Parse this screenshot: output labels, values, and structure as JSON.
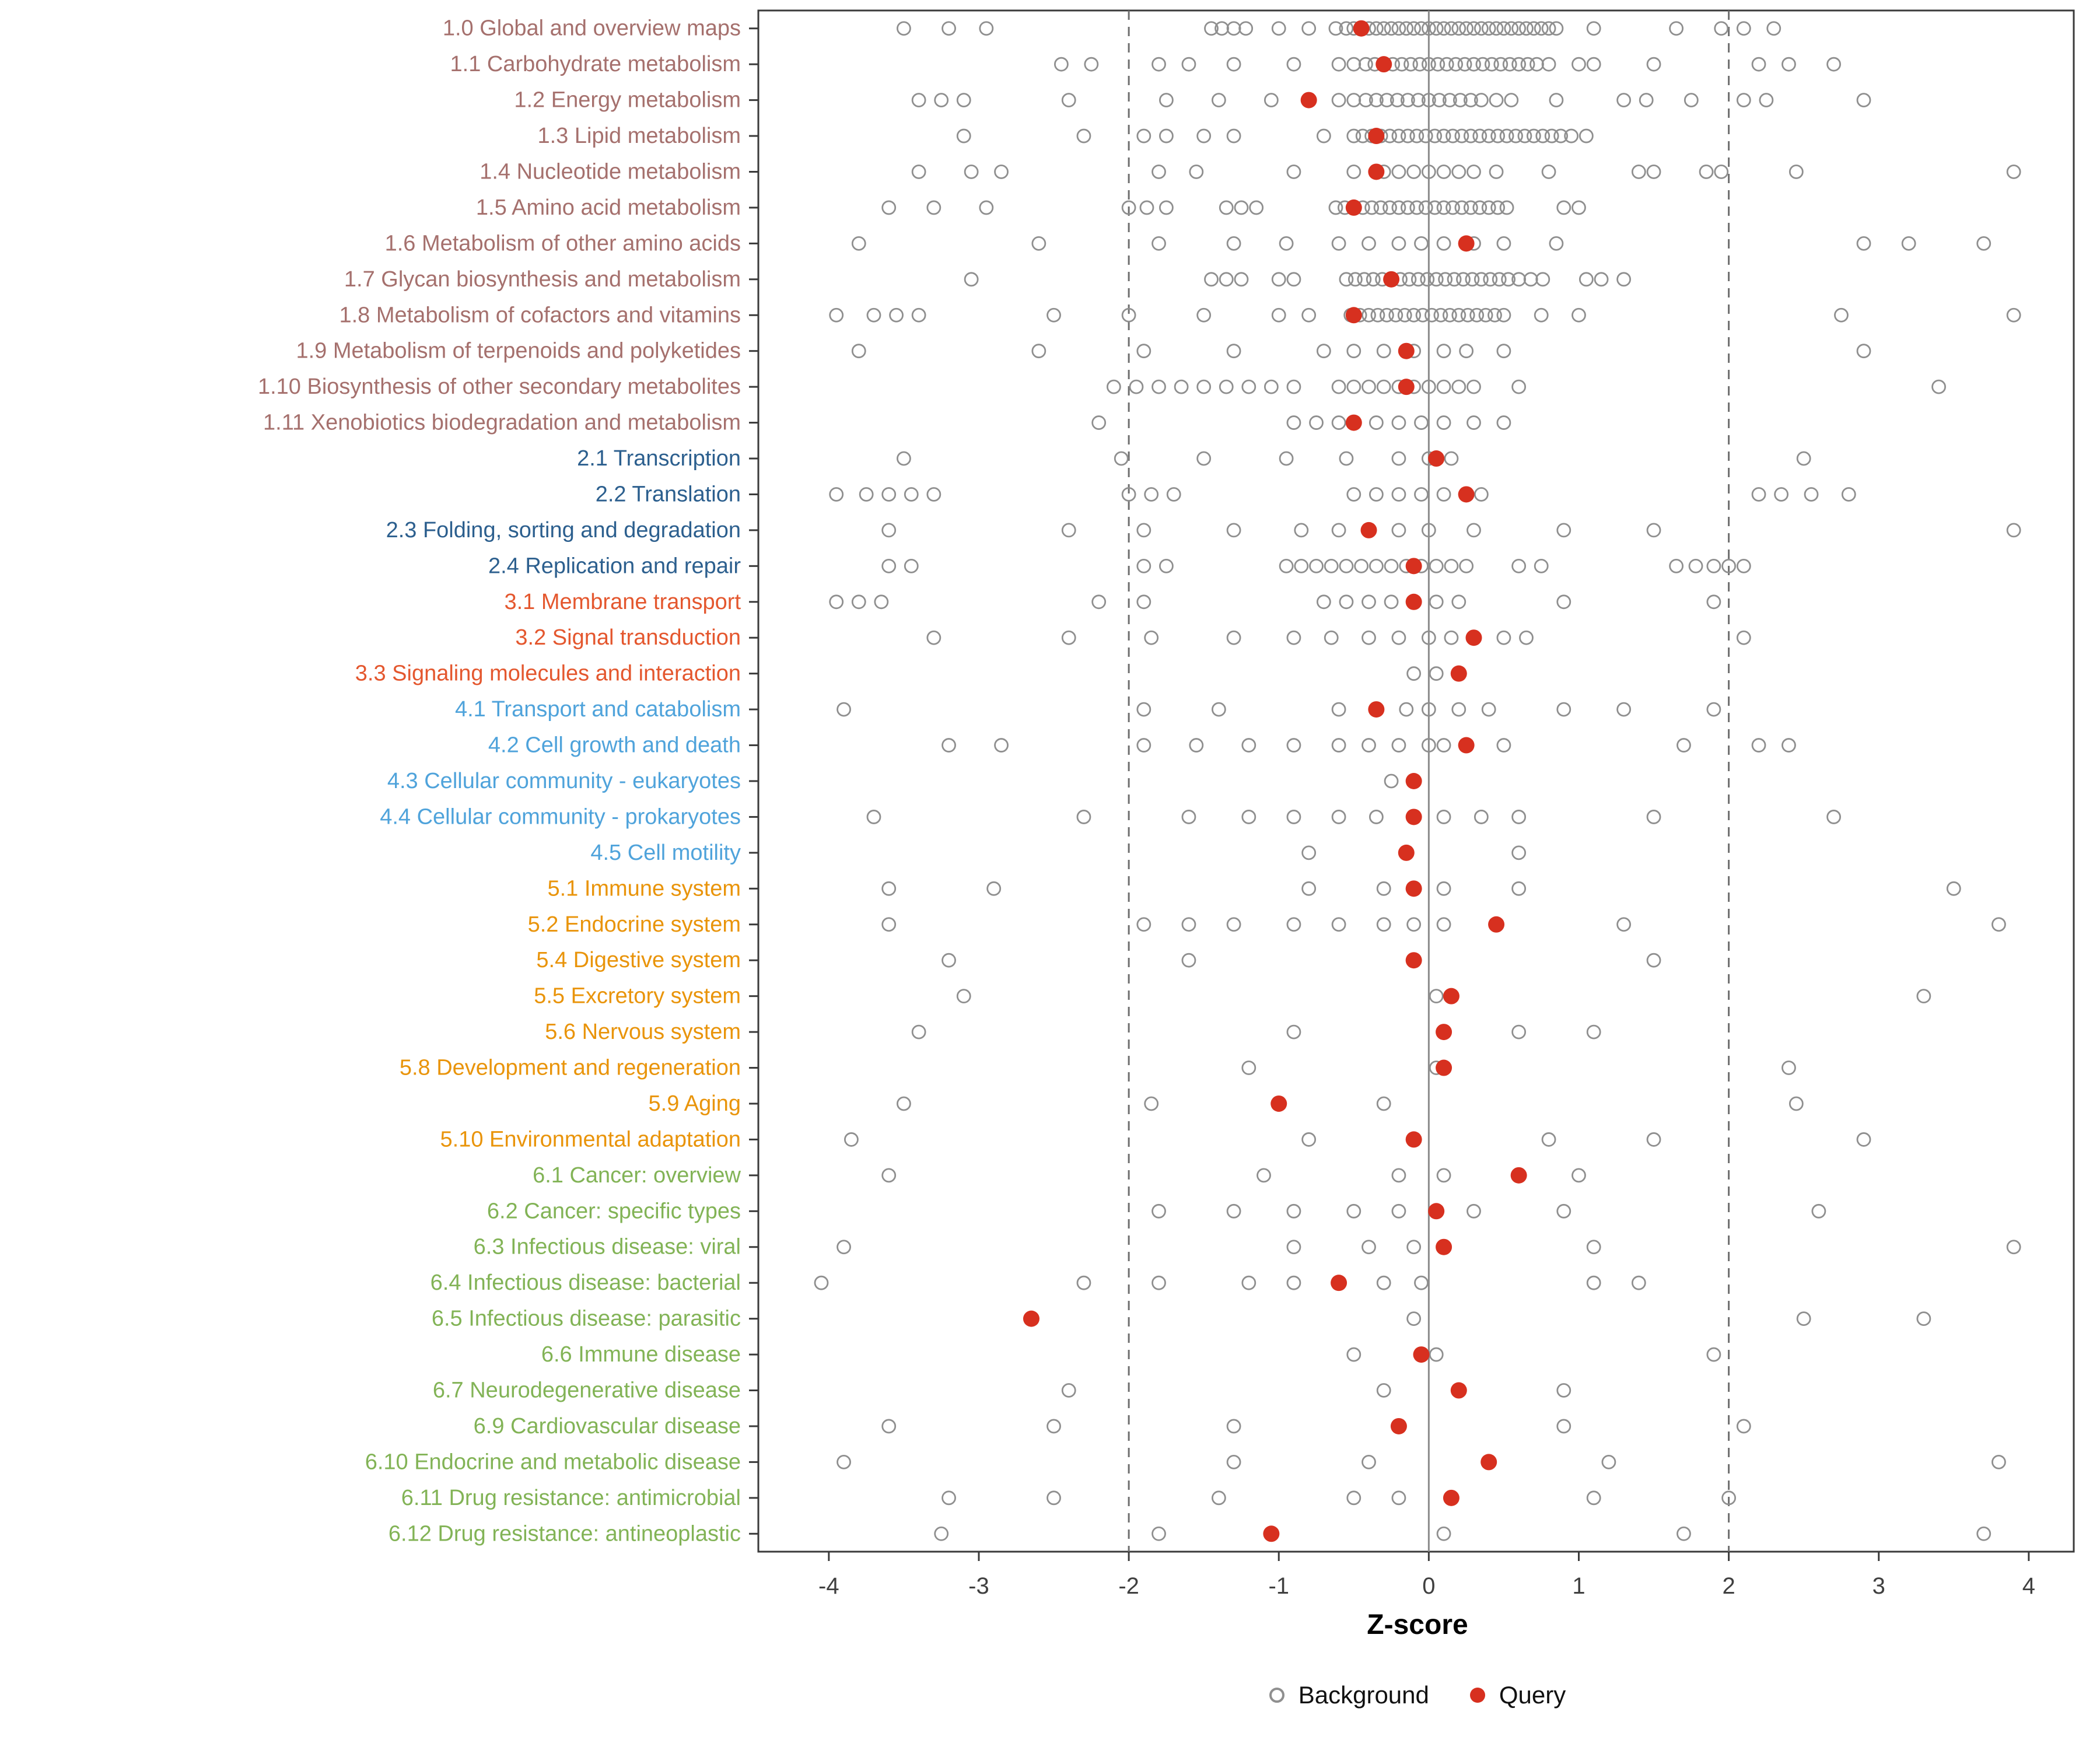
{
  "colors": {
    "query": "#D7301F",
    "background_stroke": "#8F8F8F",
    "dashed_line": "#6E6E6E",
    "zero_line": "#8A8A8A",
    "panel_border": "#3A3A3A",
    "tick_label": "#404040",
    "groups": {
      "metabolism": "#A5706D",
      "genetic": "#2C5F8E",
      "environmental": "#E4572E",
      "cellular": "#4FA3DB",
      "organismal": "#E9940A",
      "disease": "#82B356"
    }
  },
  "chart_data": {
    "type": "scatter",
    "title": "",
    "xlabel": "Z-score",
    "ylabel": "",
    "xlim": [
      -4.47,
      4.3
    ],
    "x_ticks": [
      -4,
      -3,
      -2,
      -1,
      0,
      1,
      2,
      3,
      4
    ],
    "reference_lines": {
      "dashed": [
        -2,
        2
      ],
      "solid": [
        0
      ]
    },
    "grid": "off",
    "legend": {
      "position": "bottom",
      "entries": [
        {
          "label": "Background",
          "type": "open-circle"
        },
        {
          "label": "Query",
          "type": "filled-circle"
        }
      ]
    },
    "rows": [
      {
        "label": "1.0 Global and overview maps",
        "group": "metabolism",
        "query": -0.45,
        "background": [
          -3.5,
          -3.2,
          -2.95,
          -1.45,
          -1.38,
          -1.3,
          -1.22,
          -1.0,
          -0.8,
          -0.62,
          -0.55,
          -0.5,
          -0.45,
          -0.4,
          -0.35,
          -0.3,
          -0.25,
          -0.2,
          -0.15,
          -0.1,
          -0.05,
          0,
          0.05,
          0.1,
          0.15,
          0.2,
          0.25,
          0.3,
          0.35,
          0.4,
          0.45,
          0.5,
          0.55,
          0.6,
          0.65,
          0.7,
          0.75,
          0.8,
          0.85,
          1.1,
          1.65,
          1.95,
          2.1,
          2.3
        ]
      },
      {
        "label": "1.1 Carbohydrate metabolism",
        "group": "metabolism",
        "query": -0.3,
        "background": [
          -2.45,
          -2.25,
          -1.8,
          -1.6,
          -1.3,
          -0.9,
          -0.6,
          -0.5,
          -0.42,
          -0.36,
          -0.3,
          -0.24,
          -0.18,
          -0.12,
          -0.06,
          0,
          0.06,
          0.12,
          0.18,
          0.24,
          0.3,
          0.36,
          0.42,
          0.48,
          0.54,
          0.6,
          0.66,
          0.72,
          0.8,
          1.0,
          1.1,
          1.5,
          2.2,
          2.4,
          2.7
        ]
      },
      {
        "label": "1.2 Energy metabolism",
        "group": "metabolism",
        "query": -0.8,
        "background": [
          -3.4,
          -3.25,
          -3.1,
          -2.4,
          -1.75,
          -1.4,
          -1.05,
          -0.6,
          -0.5,
          -0.42,
          -0.35,
          -0.28,
          -0.21,
          -0.14,
          -0.07,
          0,
          0.07,
          0.14,
          0.21,
          0.28,
          0.35,
          0.45,
          0.55,
          0.85,
          1.3,
          1.45,
          1.75,
          2.1,
          2.25,
          2.9
        ]
      },
      {
        "label": "1.3 Lipid metabolism",
        "group": "metabolism",
        "query": -0.35,
        "background": [
          -3.1,
          -2.3,
          -1.9,
          -1.75,
          -1.5,
          -1.3,
          -0.7,
          -0.5,
          -0.44,
          -0.38,
          -0.32,
          -0.26,
          -0.2,
          -0.14,
          -0.08,
          -0.02,
          0.04,
          0.1,
          0.16,
          0.22,
          0.28,
          0.34,
          0.4,
          0.46,
          0.52,
          0.58,
          0.64,
          0.7,
          0.76,
          0.82,
          0.88,
          0.95,
          1.05
        ]
      },
      {
        "label": "1.4 Nucleotide metabolism",
        "group": "metabolism",
        "query": -0.35,
        "background": [
          -3.4,
          -3.05,
          -2.85,
          -1.8,
          -1.55,
          -0.9,
          -0.5,
          -0.3,
          -0.2,
          -0.1,
          0,
          0.1,
          0.2,
          0.3,
          0.45,
          0.8,
          1.4,
          1.5,
          1.85,
          1.95,
          2.45,
          3.9
        ]
      },
      {
        "label": "1.5 Amino acid metabolism",
        "group": "metabolism",
        "query": -0.5,
        "background": [
          -3.6,
          -3.3,
          -2.95,
          -2.0,
          -1.88,
          -1.75,
          -1.35,
          -1.25,
          -1.15,
          -0.62,
          -0.56,
          -0.5,
          -0.44,
          -0.38,
          -0.32,
          -0.26,
          -0.2,
          -0.14,
          -0.08,
          -0.02,
          0.04,
          0.1,
          0.16,
          0.22,
          0.28,
          0.34,
          0.4,
          0.46,
          0.52,
          0.9,
          1.0
        ]
      },
      {
        "label": "1.6 Metabolism of other amino acids",
        "group": "metabolism",
        "query": 0.25,
        "background": [
          -3.8,
          -2.6,
          -1.8,
          -1.3,
          -0.95,
          -0.6,
          -0.4,
          -0.2,
          -0.05,
          0.1,
          0.3,
          0.5,
          0.85,
          2.9,
          3.2,
          3.7
        ]
      },
      {
        "label": "1.7 Glycan biosynthesis and metabolism",
        "group": "metabolism",
        "query": -0.25,
        "background": [
          -3.05,
          -1.45,
          -1.35,
          -1.25,
          -1.0,
          -0.9,
          -0.55,
          -0.49,
          -0.43,
          -0.37,
          -0.31,
          -0.25,
          -0.19,
          -0.13,
          -0.07,
          -0.01,
          0.05,
          0.11,
          0.17,
          0.23,
          0.29,
          0.35,
          0.41,
          0.47,
          0.53,
          0.6,
          0.68,
          0.76,
          1.05,
          1.15,
          1.3
        ]
      },
      {
        "label": "1.8 Metabolism of cofactors and vitamins",
        "group": "metabolism",
        "query": -0.5,
        "background": [
          -3.95,
          -3.7,
          -3.55,
          -3.4,
          -2.5,
          -2.0,
          -1.5,
          -1.0,
          -0.8,
          -0.52,
          -0.46,
          -0.4,
          -0.34,
          -0.28,
          -0.22,
          -0.16,
          -0.1,
          -0.04,
          0.02,
          0.08,
          0.14,
          0.2,
          0.26,
          0.32,
          0.38,
          0.44,
          0.5,
          0.75,
          1.0,
          2.75,
          3.9
        ]
      },
      {
        "label": "1.9 Metabolism of terpenoids and polyketides",
        "group": "metabolism",
        "query": -0.15,
        "background": [
          -3.8,
          -2.6,
          -1.9,
          -1.3,
          -0.7,
          -0.5,
          -0.3,
          -0.1,
          0.1,
          0.25,
          0.5,
          2.9
        ]
      },
      {
        "label": "1.10 Biosynthesis of other secondary metabolites",
        "group": "metabolism",
        "query": -0.15,
        "background": [
          -2.1,
          -1.95,
          -1.8,
          -1.65,
          -1.5,
          -1.35,
          -1.2,
          -1.05,
          -0.9,
          -0.6,
          -0.5,
          -0.4,
          -0.3,
          -0.2,
          -0.1,
          0,
          0.1,
          0.2,
          0.3,
          0.6,
          3.4
        ]
      },
      {
        "label": "1.11 Xenobiotics biodegradation and metabolism",
        "group": "metabolism",
        "query": -0.5,
        "background": [
          -2.2,
          -0.9,
          -0.75,
          -0.6,
          -0.35,
          -0.2,
          -0.05,
          0.1,
          0.3,
          0.5
        ]
      },
      {
        "label": "2.1 Transcription",
        "group": "genetic",
        "query": 0.05,
        "background": [
          -3.5,
          -2.05,
          -1.5,
          -0.95,
          -0.55,
          -0.2,
          0,
          0.15,
          2.5
        ]
      },
      {
        "label": "2.2 Translation",
        "group": "genetic",
        "query": 0.25,
        "background": [
          -3.95,
          -3.75,
          -3.6,
          -3.45,
          -3.3,
          -2.0,
          -1.85,
          -1.7,
          -0.5,
          -0.35,
          -0.2,
          -0.05,
          0.1,
          0.35,
          2.2,
          2.35,
          2.55,
          2.8
        ]
      },
      {
        "label": "2.3 Folding, sorting and degradation",
        "group": "genetic",
        "query": -0.4,
        "background": [
          -3.6,
          -2.4,
          -1.9,
          -1.3,
          -0.85,
          -0.6,
          -0.2,
          0,
          0.3,
          0.9,
          1.5,
          3.9
        ]
      },
      {
        "label": "2.4 Replication and repair",
        "group": "genetic",
        "query": -0.1,
        "background": [
          -3.6,
          -3.45,
          -1.9,
          -1.75,
          -0.95,
          -0.85,
          -0.75,
          -0.65,
          -0.55,
          -0.45,
          -0.35,
          -0.25,
          -0.15,
          -0.05,
          0.05,
          0.15,
          0.25,
          0.6,
          0.75,
          1.65,
          1.78,
          1.9,
          2.0,
          2.1
        ]
      },
      {
        "label": "3.1 Membrane transport",
        "group": "environmental",
        "query": -0.1,
        "background": [
          -3.95,
          -3.8,
          -3.65,
          -2.2,
          -1.9,
          -0.7,
          -0.55,
          -0.4,
          -0.25,
          0.05,
          0.2,
          0.9,
          1.9
        ]
      },
      {
        "label": "3.2 Signal transduction",
        "group": "environmental",
        "query": 0.3,
        "background": [
          -3.3,
          -2.4,
          -1.85,
          -1.3,
          -0.9,
          -0.65,
          -0.4,
          -0.2,
          0,
          0.15,
          0.5,
          0.65,
          2.1
        ]
      },
      {
        "label": "3.3 Signaling molecules and interaction",
        "group": "environmental",
        "query": 0.2,
        "background": [
          -0.1,
          0.05
        ]
      },
      {
        "label": "4.1 Transport and catabolism",
        "group": "cellular",
        "query": -0.35,
        "background": [
          -3.9,
          -1.9,
          -1.4,
          -0.6,
          -0.15,
          0,
          0.2,
          0.4,
          0.9,
          1.3,
          1.9
        ]
      },
      {
        "label": "4.2 Cell growth and death",
        "group": "cellular",
        "query": 0.25,
        "background": [
          -3.2,
          -2.85,
          -1.9,
          -1.55,
          -1.2,
          -0.9,
          -0.6,
          -0.4,
          -0.2,
          0,
          0.1,
          0.5,
          1.7,
          2.2,
          2.4
        ]
      },
      {
        "label": "4.3 Cellular community - eukaryotes",
        "group": "cellular",
        "query": -0.1,
        "background": [
          -0.25
        ]
      },
      {
        "label": "4.4 Cellular community - prokaryotes",
        "group": "cellular",
        "query": -0.1,
        "background": [
          -3.7,
          -2.3,
          -1.6,
          -1.2,
          -0.9,
          -0.6,
          -0.35,
          0.1,
          0.35,
          0.6,
          1.5,
          2.7
        ]
      },
      {
        "label": "4.5 Cell motility",
        "group": "cellular",
        "query": -0.15,
        "background": [
          -0.8,
          0.6
        ]
      },
      {
        "label": "5.1 Immune system",
        "group": "organismal",
        "query": -0.1,
        "background": [
          -3.6,
          -2.9,
          -0.8,
          -0.3,
          0.1,
          0.6,
          3.5
        ]
      },
      {
        "label": "5.2 Endocrine system",
        "group": "organismal",
        "query": 0.45,
        "background": [
          -3.6,
          -1.9,
          -1.6,
          -1.3,
          -0.9,
          -0.6,
          -0.3,
          -0.1,
          0.1,
          1.3,
          3.8
        ]
      },
      {
        "label": "5.4 Digestive system",
        "group": "organismal",
        "query": -0.1,
        "background": [
          -3.2,
          -1.6,
          -0.1,
          1.5
        ]
      },
      {
        "label": "5.5 Excretory system",
        "group": "organismal",
        "query": 0.15,
        "background": [
          -3.1,
          0.05,
          3.3
        ]
      },
      {
        "label": "5.6 Nervous system",
        "group": "organismal",
        "query": 0.1,
        "background": [
          -3.4,
          -0.9,
          0.6,
          1.1
        ]
      },
      {
        "label": "5.8 Development and regeneration",
        "group": "organismal",
        "query": 0.1,
        "background": [
          -1.2,
          0.05,
          2.4
        ]
      },
      {
        "label": "5.9 Aging",
        "group": "organismal",
        "query": -1.0,
        "background": [
          -3.5,
          -1.85,
          -0.3,
          2.45
        ]
      },
      {
        "label": "5.10 Environmental adaptation",
        "group": "organismal",
        "query": -0.1,
        "background": [
          -3.85,
          -0.8,
          0.8,
          1.5,
          2.9
        ]
      },
      {
        "label": "6.1 Cancer: overview",
        "group": "disease",
        "query": 0.6,
        "background": [
          -3.6,
          -1.1,
          -0.2,
          0.1,
          1.0
        ]
      },
      {
        "label": "6.2 Cancer: specific types",
        "group": "disease",
        "query": 0.05,
        "background": [
          -1.8,
          -1.3,
          -0.9,
          -0.5,
          -0.2,
          0.3,
          0.9,
          2.6
        ]
      },
      {
        "label": "6.3 Infectious disease: viral",
        "group": "disease",
        "query": 0.1,
        "background": [
          -3.9,
          -0.9,
          -0.4,
          -0.1,
          1.1,
          3.9
        ]
      },
      {
        "label": "6.4 Infectious disease: bacterial",
        "group": "disease",
        "query": -0.6,
        "background": [
          -4.05,
          -2.3,
          -1.8,
          -1.2,
          -0.9,
          -0.3,
          -0.05,
          1.1,
          1.4
        ]
      },
      {
        "label": "6.5 Infectious disease: parasitic",
        "group": "disease",
        "query": -2.65,
        "background": [
          -0.1,
          2.5,
          3.3
        ]
      },
      {
        "label": "6.6 Immune disease",
        "group": "disease",
        "query": -0.05,
        "background": [
          -0.5,
          0.05,
          1.9
        ]
      },
      {
        "label": "6.7 Neurodegenerative disease",
        "group": "disease",
        "query": 0.2,
        "background": [
          -2.4,
          -0.3,
          0.9
        ]
      },
      {
        "label": "6.9 Cardiovascular disease",
        "group": "disease",
        "query": -0.2,
        "background": [
          -3.6,
          -2.5,
          -1.3,
          0.9,
          2.1
        ]
      },
      {
        "label": "6.10 Endocrine and metabolic disease",
        "group": "disease",
        "query": 0.4,
        "background": [
          -3.9,
          -1.3,
          -0.4,
          1.2,
          3.8
        ]
      },
      {
        "label": "6.11 Drug resistance: antimicrobial",
        "group": "disease",
        "query": 0.15,
        "background": [
          -3.2,
          -2.5,
          -1.4,
          -0.5,
          -0.2,
          1.1,
          2.0
        ]
      },
      {
        "label": "6.12 Drug resistance: antineoplastic",
        "group": "disease",
        "query": -1.05,
        "background": [
          -3.25,
          -1.8,
          0.1,
          1.7,
          3.7
        ]
      }
    ]
  }
}
